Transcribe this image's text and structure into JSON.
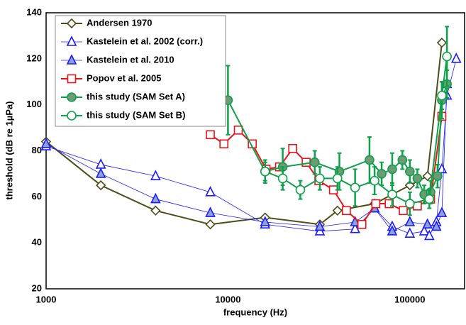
{
  "chart_data": {
    "type": "line",
    "x_label": "frequency (Hz)",
    "y_label": "threshold (dB re 1µPa)",
    "x_log": true,
    "grid": true,
    "xlim": [
      1000,
      200000
    ],
    "ylim": [
      20,
      140
    ],
    "xticks": [
      1000,
      10000,
      100000
    ],
    "xminor_grid": [
      2000,
      3000,
      4000,
      5000,
      6000,
      7000,
      8000,
      9000,
      20000,
      30000,
      40000,
      50000,
      60000,
      70000,
      80000,
      90000
    ],
    "yticks": [
      20,
      40,
      60,
      80,
      100,
      120,
      140
    ],
    "legend": "upper-left",
    "series": [
      {
        "name": "Andersen 1970",
        "color": "#4d4d1a",
        "fill": "#ffffff",
        "marker": "diamond",
        "line_width": 2,
        "x": [
          1000,
          2000,
          4000,
          8000,
          16000,
          32000,
          40000,
          64000,
          100000,
          125000,
          150000
        ],
        "values": [
          84,
          65,
          54,
          48,
          51,
          48,
          54,
          57,
          65,
          69,
          127
        ]
      },
      {
        "name": "Kastelein et al. 2002 (corr.)",
        "color": "#1a1aff",
        "fill": "#ffffff",
        "marker": "triangle",
        "line_width": 0.8,
        "x": [
          1000,
          2000,
          4000,
          8000,
          16000,
          32000,
          50000,
          64000,
          80000,
          100000,
          120000,
          128000,
          140000,
          150000,
          160000,
          180000
        ],
        "values": [
          82,
          74,
          69,
          62,
          48,
          45,
          46,
          55,
          47,
          44,
          45,
          43,
          49,
          72,
          104,
          120
        ]
      },
      {
        "name": "Kastelein et al. 2010",
        "color": "#1a1aff",
        "fill": "#8ea2cf",
        "marker": "triangle",
        "line_width": 0.8,
        "x": [
          1000,
          2000,
          4000,
          8000,
          16000,
          32000,
          50000,
          64000,
          80000,
          100000,
          125000,
          140000,
          150000,
          160000
        ],
        "values": [
          83,
          70,
          59,
          53,
          49,
          47,
          49,
          55,
          45,
          49,
          48,
          47,
          53,
          109
        ]
      },
      {
        "name": "Popov et al. 2005",
        "color": "#e8141b",
        "fill": "#ffffff",
        "marker": "square",
        "line_width": 2,
        "x": [
          8000,
          9500,
          11400,
          13600,
          16200,
          19200,
          22700,
          26900,
          31600,
          38000,
          44800,
          54500,
          65000,
          77000,
          92000,
          110000,
          130000,
          150000
        ],
        "values": [
          87,
          83,
          89,
          83,
          72,
          73,
          81,
          75,
          67,
          63,
          54,
          48,
          57,
          57,
          54,
          56,
          59,
          95
        ]
      },
      {
        "name": "this study (SAM Set A)",
        "color": "#0ea14a",
        "fill": "#6f9a76",
        "marker": "circle",
        "line_width": 2,
        "x": [
          10000,
          16000,
          20000,
          30000,
          41000,
          60000,
          70000,
          80000,
          91000,
          100000,
          110000,
          120000,
          130000,
          142000,
          150000,
          160000
        ],
        "values": [
          102,
          71,
          73,
          75,
          71,
          76,
          70,
          72,
          76,
          71,
          68,
          61,
          62,
          69,
          102,
          109
        ],
        "errors": [
          15,
          5,
          8,
          5,
          8,
          10,
          5,
          7,
          4,
          5,
          4,
          4,
          5,
          5,
          8,
          6
        ]
      },
      {
        "name": "this study (SAM Set B)",
        "color": "#0ea14a",
        "fill": "#ffffff",
        "marker": "circle",
        "line_width": 2,
        "x": [
          16000,
          20000,
          25000,
          32000,
          40000,
          50000,
          64000,
          80000,
          100000,
          128000,
          150000,
          160000
        ],
        "values": [
          71,
          68,
          63,
          68,
          68,
          64,
          67,
          61,
          57,
          59,
          104,
          121
        ],
        "errors": [
          4,
          5,
          4,
          5,
          5,
          8,
          6,
          5,
          5,
          4,
          6,
          13
        ]
      }
    ]
  }
}
